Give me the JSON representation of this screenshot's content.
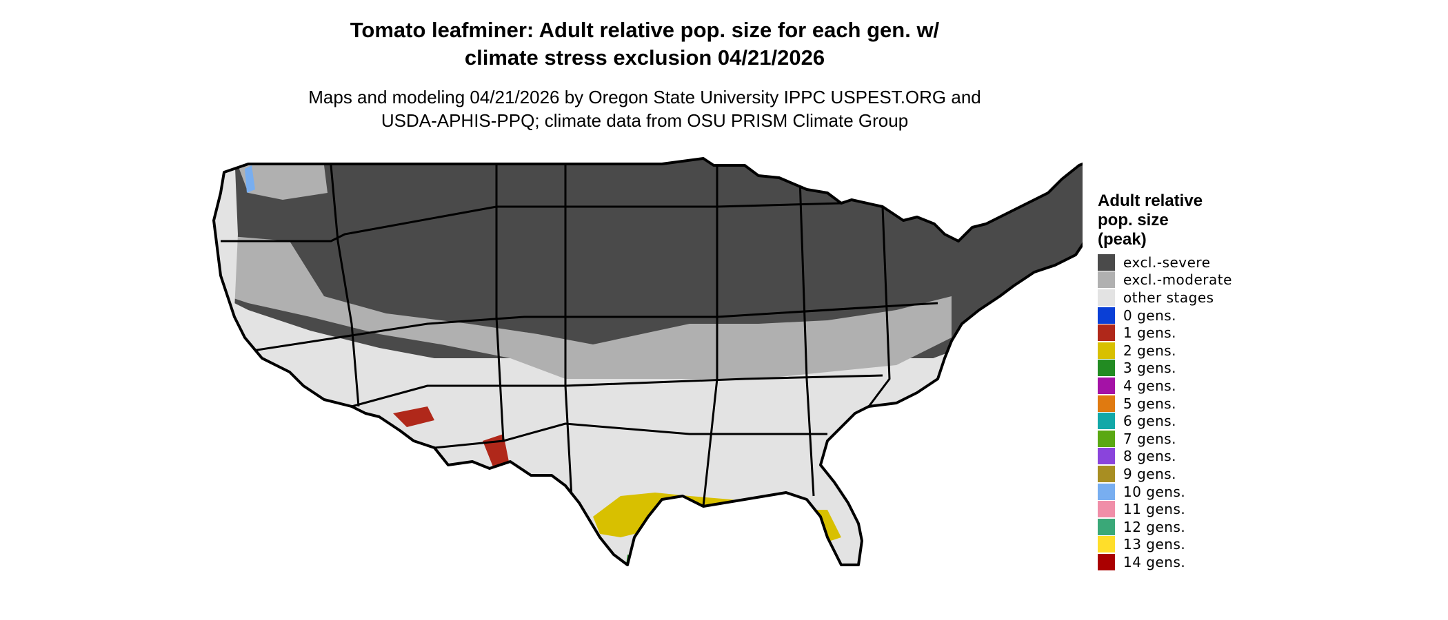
{
  "title": {
    "line1": "Tomato leafminer: Adult relative pop. size for each gen. w/",
    "line2": "climate stress exclusion 04/21/2026"
  },
  "subtitle": {
    "line1": "Maps and modeling 04/21/2026 by Oregon State University IPPC USPEST.ORG and",
    "line2": "USDA-APHIS-PPQ; climate data from OSU PRISM Climate Group"
  },
  "legend": {
    "title_lines": [
      "Adult relative",
      "pop. size",
      "(peak)"
    ],
    "items": [
      {
        "label": "excl.-severe",
        "color": "#4a4a4a"
      },
      {
        "label": "excl.-moderate",
        "color": "#b0b0b0"
      },
      {
        "label": "other stages",
        "color": "#e3e3e3"
      },
      {
        "label": "0 gens.",
        "color": "#0a3fd6"
      },
      {
        "label": "1 gens.",
        "color": "#b0281a"
      },
      {
        "label": "2 gens.",
        "color": "#d8c000"
      },
      {
        "label": "3 gens.",
        "color": "#228b22"
      },
      {
        "label": "4 gens.",
        "color": "#a412a6"
      },
      {
        "label": "5 gens.",
        "color": "#e07a10"
      },
      {
        "label": "6 gens.",
        "color": "#12a8a8"
      },
      {
        "label": "7 gens.",
        "color": "#5aa812"
      },
      {
        "label": "8 gens.",
        "color": "#8a44dc"
      },
      {
        "label": "9 gens.",
        "color": "#a88e22"
      },
      {
        "label": "10 gens.",
        "color": "#78aef0"
      },
      {
        "label": "11 gens.",
        "color": "#f08ea8"
      },
      {
        "label": "12 gens.",
        "color": "#3aa878"
      },
      {
        "label": "13 gens.",
        "color": "#ffde2a"
      },
      {
        "label": "14 gens.",
        "color": "#aa0000"
      }
    ]
  },
  "map": {
    "colors": {
      "severe": "#4a4a4a",
      "moderate": "#b0b0b0",
      "other": "#e3e3e3",
      "gen1": "#b0281a",
      "gen2": "#d8c000",
      "gen3": "#228b22",
      "gen10": "#78aef0",
      "border": "#000000"
    }
  }
}
